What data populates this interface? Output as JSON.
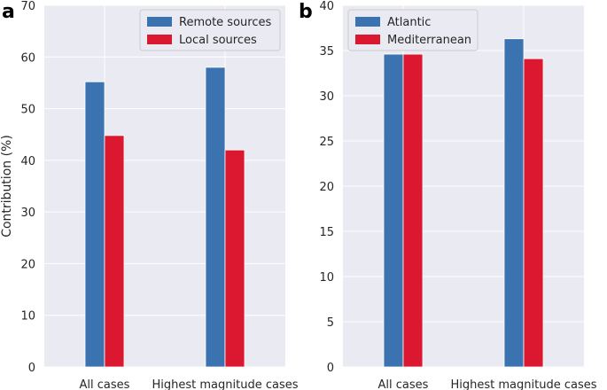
{
  "colors": {
    "background": "#eaeaf2",
    "grid": "#ffffff",
    "series_blue": "#3b72b0",
    "series_red": "#dc1730",
    "text": "#262626",
    "legend_bg": "#eaeaf2",
    "legend_border": "#cccccc"
  },
  "chart_data": [
    {
      "panel_label": "a",
      "type": "bar",
      "categories": [
        "All cases",
        "Highest magnitude cases"
      ],
      "series": [
        {
          "name": "Remote sources",
          "color": "#3b72b0",
          "values": [
            55.2,
            58.0
          ]
        },
        {
          "name": "Local sources",
          "color": "#dc1730",
          "values": [
            44.8,
            42.0
          ]
        }
      ],
      "ylabel": "Contribution (%)",
      "xlabel": "",
      "ylim": [
        0,
        70
      ],
      "yticks": [
        0,
        10,
        20,
        30,
        40,
        50,
        60,
        70
      ],
      "grid": true,
      "legend_position": "top-right"
    },
    {
      "panel_label": "b",
      "type": "bar",
      "categories": [
        "All cases",
        "Highest magnitude cases"
      ],
      "series": [
        {
          "name": "Atlantic",
          "color": "#3b72b0",
          "values": [
            34.6,
            36.3
          ]
        },
        {
          "name": "Mediterranean",
          "color": "#dc1730",
          "values": [
            34.6,
            34.1
          ]
        }
      ],
      "ylabel": "",
      "xlabel": "",
      "ylim": [
        0,
        40
      ],
      "yticks": [
        0,
        5,
        10,
        15,
        20,
        25,
        30,
        35,
        40
      ],
      "grid": true,
      "legend_position": "top-left"
    }
  ]
}
